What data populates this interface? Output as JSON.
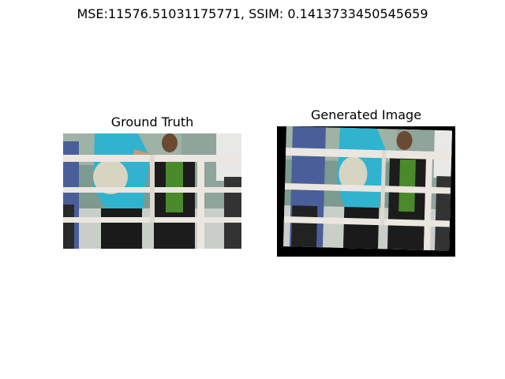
{
  "figure": {
    "suptitle": "MSE:11576.51031175771, SSIM: 0.1413733450545659"
  },
  "panels": [
    {
      "title": "Ground Truth"
    },
    {
      "title": "Generated Image"
    }
  ],
  "colors": {
    "scarf": "#2fb3cf",
    "railing": "#ebe6df",
    "dark_clothing": "#1c1c1c",
    "green_top": "#4a8a2a",
    "background_glass": "#6f8f86",
    "frame_fill": "#000000"
  }
}
